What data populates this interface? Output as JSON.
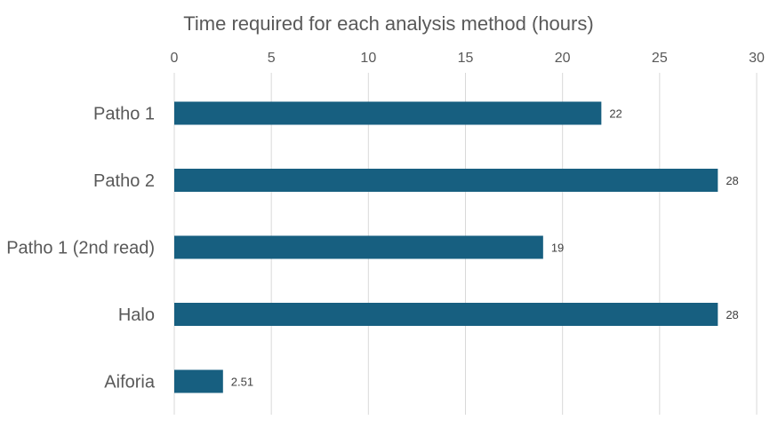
{
  "chart_data": {
    "type": "bar",
    "orientation": "horizontal",
    "title": "Time required for each analysis method (hours)",
    "categories": [
      "Patho 1",
      "Patho 2",
      "Patho 1 (2nd read)",
      "Halo",
      "Aiforia"
    ],
    "values": [
      22,
      28,
      19,
      28,
      2.51
    ],
    "data_labels": [
      "22",
      "28",
      "19",
      "28",
      "2.51"
    ],
    "xlabel": "",
    "ylabel": "",
    "xlim": [
      0,
      30
    ],
    "x_ticks": [
      0,
      5,
      10,
      15,
      20,
      25,
      30
    ],
    "x_axis_position": "top",
    "grid": true,
    "legend": "none",
    "colors": {
      "bar": "#175f80",
      "grid": "#d9d9d9",
      "text": "#595959",
      "data_label": "#404040"
    }
  }
}
